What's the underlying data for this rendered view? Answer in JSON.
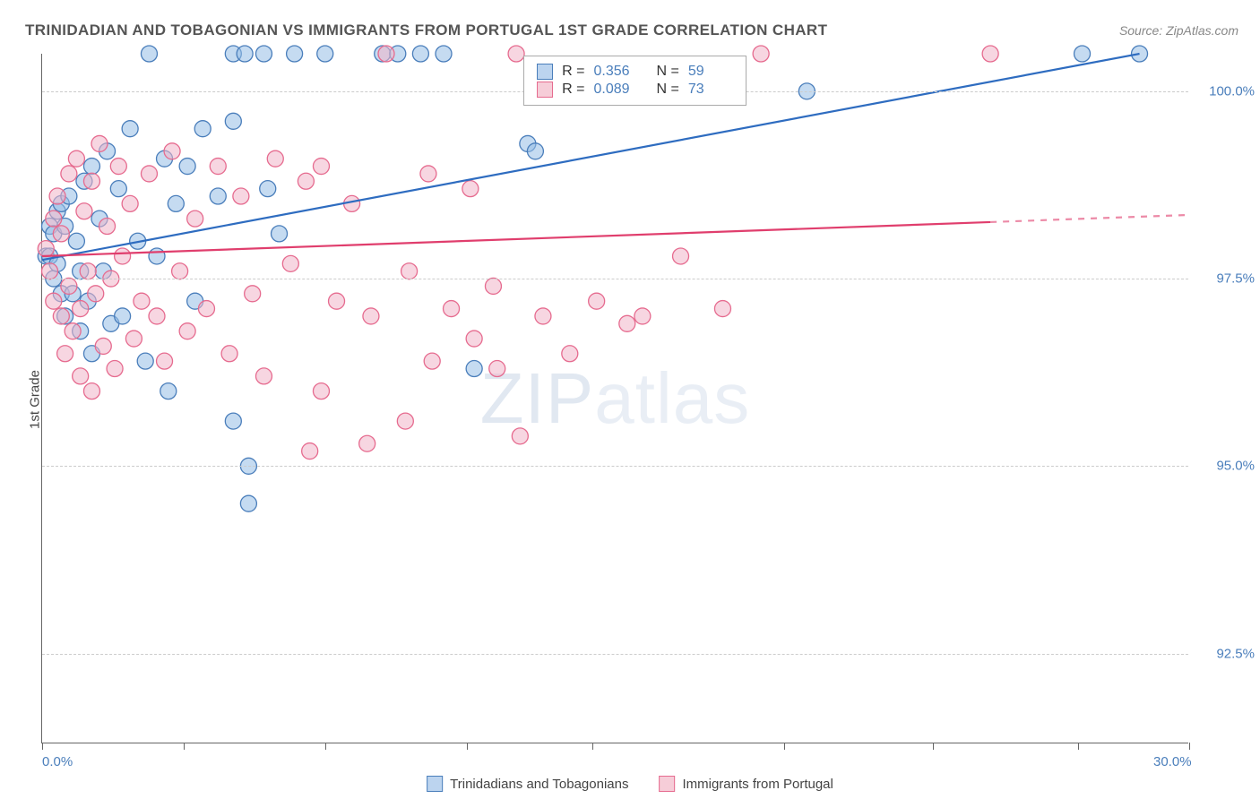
{
  "title": "TRINIDADIAN AND TOBAGONIAN VS IMMIGRANTS FROM PORTUGAL 1ST GRADE CORRELATION CHART",
  "source": "Source: ZipAtlas.com",
  "ylabel": "1st Grade",
  "watermark": {
    "zip": "ZIP",
    "atlas": "atlas"
  },
  "plot": {
    "type": "scatter-correlation",
    "background_color": "#ffffff",
    "grid_color": "#cccccc",
    "axis_color": "#666666",
    "xlim": [
      0,
      30
    ],
    "ylim": [
      91.3,
      100.5
    ],
    "xticks": [
      0,
      3.7,
      7.4,
      11.1,
      14.4,
      19.4,
      23.3,
      27.1,
      30
    ],
    "x_axis_labels": [
      {
        "value": 0.0,
        "text": "0.0%"
      },
      {
        "value": 30.0,
        "text": "30.0%"
      }
    ],
    "yticks": [
      {
        "value": 100.0,
        "text": "100.0%"
      },
      {
        "value": 97.5,
        "text": "97.5%"
      },
      {
        "value": 95.0,
        "text": "95.0%"
      },
      {
        "value": 92.5,
        "text": "92.5%"
      }
    ],
    "stats_box": {
      "left_pct": 42,
      "top_pct": 0.2,
      "rows": [
        {
          "swatch_fill": "#bcd4ef",
          "swatch_stroke": "#4a7ebb",
          "r_label": "R =",
          "r": "0.356",
          "n_label": "N =",
          "n": "59"
        },
        {
          "swatch_fill": "#f6cdd8",
          "swatch_stroke": "#e66b8f",
          "r_label": "R =",
          "r": "0.089",
          "n_label": "N =",
          "n": "73"
        }
      ]
    },
    "legend": [
      {
        "swatch_fill": "#bcd4ef",
        "swatch_stroke": "#4a7ebb",
        "label": "Trinidadians and Tobagonians"
      },
      {
        "swatch_fill": "#f6cdd8",
        "swatch_stroke": "#e66b8f",
        "label": "Immigrants from Portugal"
      }
    ],
    "series": [
      {
        "name": "trinidadians",
        "color_fill": "rgba(150,190,230,0.55)",
        "color_stroke": "#4a7ebb",
        "marker_radius": 9,
        "trend": {
          "x1": 0,
          "y1": 97.75,
          "x2": 28.7,
          "y2": 100.5,
          "solid_end_x": 28.7,
          "stroke": "#2e6cc0",
          "width": 2.2
        },
        "points": [
          [
            0.1,
            97.8
          ],
          [
            0.2,
            97.8
          ],
          [
            0.2,
            98.2
          ],
          [
            0.3,
            98.1
          ],
          [
            0.3,
            97.5
          ],
          [
            0.4,
            98.4
          ],
          [
            0.4,
            97.7
          ],
          [
            0.5,
            98.5
          ],
          [
            0.5,
            97.3
          ],
          [
            0.6,
            98.2
          ],
          [
            0.6,
            97.0
          ],
          [
            0.7,
            98.6
          ],
          [
            0.8,
            97.3
          ],
          [
            0.9,
            98.0
          ],
          [
            1.0,
            96.8
          ],
          [
            1.0,
            97.6
          ],
          [
            1.1,
            98.8
          ],
          [
            1.2,
            97.2
          ],
          [
            1.3,
            99.0
          ],
          [
            1.3,
            96.5
          ],
          [
            1.5,
            98.3
          ],
          [
            1.6,
            97.6
          ],
          [
            1.7,
            99.2
          ],
          [
            1.8,
            96.9
          ],
          [
            2.0,
            98.7
          ],
          [
            2.1,
            97.0
          ],
          [
            2.3,
            99.5
          ],
          [
            2.5,
            98.0
          ],
          [
            2.7,
            96.4
          ],
          [
            2.8,
            100.5
          ],
          [
            3.0,
            97.8
          ],
          [
            3.2,
            99.1
          ],
          [
            3.3,
            96.0
          ],
          [
            3.5,
            98.5
          ],
          [
            3.8,
            99.0
          ],
          [
            4.0,
            97.2
          ],
          [
            4.2,
            99.5
          ],
          [
            4.6,
            98.6
          ],
          [
            5.0,
            100.5
          ],
          [
            5.0,
            99.6
          ],
          [
            5.0,
            95.6
          ],
          [
            5.3,
            100.5
          ],
          [
            5.4,
            95.0
          ],
          [
            5.4,
            94.5
          ],
          [
            5.8,
            100.5
          ],
          [
            5.9,
            98.7
          ],
          [
            6.2,
            98.1
          ],
          [
            6.6,
            100.5
          ],
          [
            7.4,
            100.5
          ],
          [
            8.9,
            100.5
          ],
          [
            9.3,
            100.5
          ],
          [
            9.9,
            100.5
          ],
          [
            10.5,
            100.5
          ],
          [
            11.3,
            96.3
          ],
          [
            12.7,
            99.3
          ],
          [
            12.9,
            99.2
          ],
          [
            20.0,
            100.0
          ],
          [
            27.2,
            100.5
          ],
          [
            28.7,
            100.5
          ]
        ]
      },
      {
        "name": "portugal",
        "color_fill": "rgba(240,180,200,0.55)",
        "color_stroke": "#e66b8f",
        "marker_radius": 9,
        "trend": {
          "x1": 0,
          "y1": 97.8,
          "x2": 30,
          "y2": 98.35,
          "solid_end_x": 24.8,
          "stroke": "#e03e6d",
          "width": 2.2
        },
        "points": [
          [
            0.1,
            97.9
          ],
          [
            0.2,
            97.6
          ],
          [
            0.3,
            98.3
          ],
          [
            0.3,
            97.2
          ],
          [
            0.4,
            98.6
          ],
          [
            0.5,
            97.0
          ],
          [
            0.5,
            98.1
          ],
          [
            0.6,
            96.5
          ],
          [
            0.7,
            98.9
          ],
          [
            0.7,
            97.4
          ],
          [
            0.8,
            96.8
          ],
          [
            0.9,
            99.1
          ],
          [
            1.0,
            97.1
          ],
          [
            1.0,
            96.2
          ],
          [
            1.1,
            98.4
          ],
          [
            1.2,
            97.6
          ],
          [
            1.3,
            96.0
          ],
          [
            1.3,
            98.8
          ],
          [
            1.4,
            97.3
          ],
          [
            1.5,
            99.3
          ],
          [
            1.6,
            96.6
          ],
          [
            1.7,
            98.2
          ],
          [
            1.8,
            97.5
          ],
          [
            1.9,
            96.3
          ],
          [
            2.0,
            99.0
          ],
          [
            2.1,
            97.8
          ],
          [
            2.3,
            98.5
          ],
          [
            2.4,
            96.7
          ],
          [
            2.6,
            97.2
          ],
          [
            2.8,
            98.9
          ],
          [
            3.0,
            97.0
          ],
          [
            3.2,
            96.4
          ],
          [
            3.4,
            99.2
          ],
          [
            3.6,
            97.6
          ],
          [
            3.8,
            96.8
          ],
          [
            4.0,
            98.3
          ],
          [
            4.3,
            97.1
          ],
          [
            4.6,
            99.0
          ],
          [
            4.9,
            96.5
          ],
          [
            5.2,
            98.6
          ],
          [
            5.5,
            97.3
          ],
          [
            5.8,
            96.2
          ],
          [
            6.1,
            99.1
          ],
          [
            6.5,
            97.7
          ],
          [
            6.9,
            98.8
          ],
          [
            7.0,
            95.2
          ],
          [
            7.3,
            96.0
          ],
          [
            7.3,
            99.0
          ],
          [
            7.7,
            97.2
          ],
          [
            8.1,
            98.5
          ],
          [
            8.5,
            95.3
          ],
          [
            8.6,
            97.0
          ],
          [
            9.0,
            100.5
          ],
          [
            9.5,
            95.6
          ],
          [
            9.6,
            97.6
          ],
          [
            10.1,
            98.9
          ],
          [
            10.2,
            96.4
          ],
          [
            10.7,
            97.1
          ],
          [
            11.2,
            98.7
          ],
          [
            11.3,
            96.7
          ],
          [
            11.8,
            97.4
          ],
          [
            11.9,
            96.3
          ],
          [
            12.4,
            100.5
          ],
          [
            12.5,
            95.4
          ],
          [
            13.1,
            97.0
          ],
          [
            13.8,
            96.5
          ],
          [
            14.5,
            97.2
          ],
          [
            15.3,
            96.9
          ],
          [
            15.7,
            97.0
          ],
          [
            16.7,
            97.8
          ],
          [
            17.8,
            97.1
          ],
          [
            24.8,
            100.5
          ],
          [
            18.8,
            100.5
          ]
        ]
      }
    ]
  }
}
